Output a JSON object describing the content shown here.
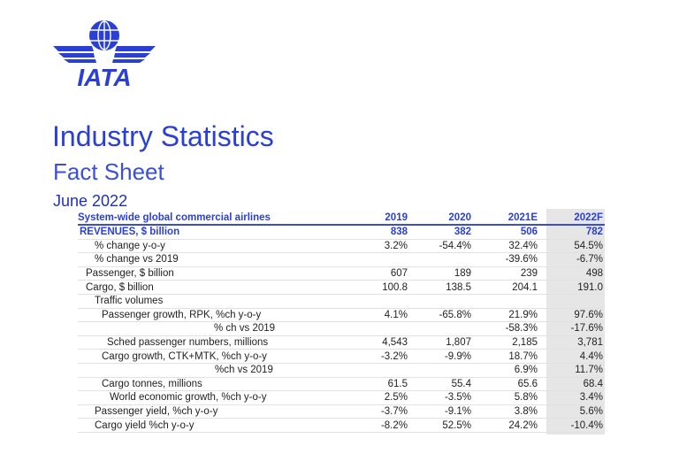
{
  "logo": {
    "text": "IATA",
    "color": "#2a3fd6"
  },
  "title": "Industry Statistics",
  "subtitle": "Fact Sheet",
  "date": "June 2022",
  "table": {
    "headers": [
      "System-wide global commercial airlines",
      "2019",
      "2020",
      "2021E",
      "2022F"
    ],
    "rows": [
      {
        "label": "REVENUES, $ billion",
        "indent": 0,
        "values": [
          "838",
          "382",
          "506",
          "782"
        ]
      },
      {
        "label": "% change y-o-y",
        "indent": 2,
        "values": [
          "3.2%",
          "-54.4%",
          "32.4%",
          "54.5%"
        ]
      },
      {
        "label": "% change vs 2019",
        "indent": 2,
        "values": [
          "",
          "",
          "-39.6%",
          "-6.7%"
        ]
      },
      {
        "label": "Passenger, $ billion",
        "indent": 1,
        "values": [
          "607",
          "189",
          "239",
          "498"
        ]
      },
      {
        "label": "Cargo, $ billion",
        "indent": 1,
        "values": [
          "100.8",
          "138.5",
          "204.1",
          "191.0"
        ]
      },
      {
        "label": "Traffic volumes",
        "indent": 2,
        "values": [
          "",
          "",
          "",
          ""
        ]
      },
      {
        "label": "Passenger growth, RPK, %ch y-o-y",
        "indent": 3,
        "values": [
          "4.1%",
          "-65.8%",
          "21.9%",
          "97.6%"
        ]
      },
      {
        "label": "% ch vs 2019",
        "indent": 6,
        "values": [
          "",
          "",
          "-58.3%",
          "-17.6%"
        ]
      },
      {
        "label": "Sched passenger numbers, millions",
        "indent": 4,
        "values": [
          "4,543",
          "1,807",
          "2,185",
          "3,781"
        ]
      },
      {
        "label": "Cargo growth, CTK+MTK, %ch y-o-y",
        "indent": 3,
        "values": [
          "-3.2%",
          "-9.9%",
          "18.7%",
          "4.4%"
        ]
      },
      {
        "label": "%ch vs 2019",
        "indent": 7,
        "values": [
          "",
          "",
          "6.9%",
          "11.7%"
        ]
      },
      {
        "label": "Cargo tonnes, millions",
        "indent": 3,
        "values": [
          "61.5",
          "55.4",
          "65.6",
          "68.4"
        ]
      },
      {
        "label": "World economic growth, %ch y-o-y",
        "indent": 5,
        "values": [
          "2.5%",
          "-3.5%",
          "5.8%",
          "3.4%"
        ]
      },
      {
        "label": "Passenger yield, %ch y-o-y",
        "indent": 2,
        "values": [
          "-3.7%",
          "-9.1%",
          "3.8%",
          "5.6%"
        ]
      },
      {
        "label": "Cargo yield %ch y-o-y",
        "indent": 2,
        "values": [
          "-8.2%",
          "52.5%",
          "24.2%",
          "-10.4%"
        ]
      }
    ]
  }
}
